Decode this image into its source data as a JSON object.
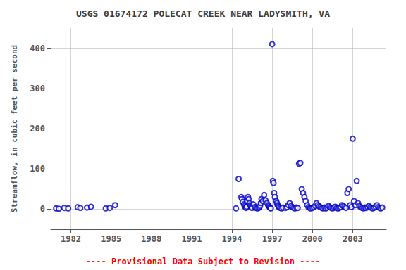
{
  "chart_data": {
    "type": "scatter",
    "title": "USGS 01674172 POLECAT CREEK NEAR LADYSMITH, VA",
    "ylabel": "Streamflow, in cubic feet per second",
    "annotations": [
      {
        "text": "---- Provisional Data Subject to Revision ----",
        "color": "#FF0000"
      }
    ],
    "xlim": [
      1980.5,
      2005.5
    ],
    "ylim": [
      -50,
      450
    ],
    "xticks": [
      1982,
      1985,
      1988,
      1991,
      1994,
      1997,
      2000,
      2003
    ],
    "yticks": [
      0,
      100,
      200,
      300,
      400
    ],
    "grid": true,
    "color": "#0000CC",
    "marker": "circle",
    "x": [
      1980.9,
      1981.1,
      1981.5,
      1981.8,
      1982.5,
      1982.7,
      1983.2,
      1983.5,
      1984.6,
      1984.9,
      1985.3,
      1994.3,
      1994.5,
      1994.7,
      1994.75,
      1994.8,
      1994.9,
      1994.95,
      1995.0,
      1995.05,
      1995.1,
      1995.15,
      1995.2,
      1995.25,
      1995.3,
      1995.35,
      1995.4,
      1995.45,
      1995.5,
      1995.6,
      1995.7,
      1995.8,
      1995.9,
      1996.0,
      1996.05,
      1996.1,
      1996.15,
      1996.2,
      1996.3,
      1996.4,
      1996.5,
      1996.6,
      1996.7,
      1996.75,
      1996.8,
      1996.85,
      1996.9,
      1997.0,
      1997.05,
      1997.1,
      1997.15,
      1997.2,
      1997.3,
      1997.35,
      1997.4,
      1997.45,
      1997.5,
      1997.6,
      1997.7,
      1997.8,
      1998.0,
      1998.1,
      1998.2,
      1998.3,
      1998.4,
      1998.5,
      1998.6,
      1998.7,
      1998.8,
      1998.9,
      1999.0,
      1999.1,
      1999.2,
      1999.3,
      1999.4,
      1999.5,
      1999.6,
      1999.7,
      1999.8,
      1999.85,
      2000.0,
      2000.1,
      2000.2,
      2000.3,
      2000.4,
      2000.5,
      2000.6,
      2000.7,
      2000.8,
      2000.9,
      2001.0,
      2001.1,
      2001.2,
      2001.3,
      2001.4,
      2001.5,
      2001.6,
      2001.7,
      2001.8,
      2001.9,
      2002.0,
      2002.1,
      2002.2,
      2002.3,
      2002.4,
      2002.5,
      2002.6,
      2002.7,
      2002.8,
      2002.9,
      2003.0,
      2003.1,
      2003.2,
      2003.3,
      2003.4,
      2003.5,
      2003.6,
      2003.7,
      2003.8,
      2003.9,
      2004.0,
      2004.1,
      2004.2,
      2004.3,
      2004.4,
      2004.5,
      2004.6,
      2004.7,
      2004.8,
      2004.9,
      2005.0,
      2005.1,
      2005.2
    ],
    "values": [
      2,
      1,
      3,
      2,
      5,
      3,
      4,
      6,
      2,
      3,
      10,
      2,
      75,
      30,
      25,
      18,
      12,
      8,
      5,
      3,
      6,
      20,
      30,
      25,
      15,
      10,
      8,
      5,
      3,
      12,
      5,
      3,
      2,
      3,
      5,
      8,
      15,
      25,
      20,
      35,
      22,
      15,
      10,
      8,
      5,
      3,
      2,
      410,
      70,
      65,
      40,
      30,
      20,
      15,
      10,
      8,
      5,
      3,
      2,
      4,
      3,
      5,
      10,
      15,
      8,
      5,
      3,
      2,
      4,
      3,
      113,
      115,
      50,
      40,
      30,
      20,
      10,
      5,
      3,
      2,
      3,
      5,
      8,
      15,
      10,
      7,
      5,
      3,
      2,
      4,
      2,
      4,
      8,
      5,
      3,
      2,
      4,
      6,
      3,
      2,
      3,
      5,
      10,
      8,
      5,
      3,
      40,
      50,
      10,
      5,
      175,
      20,
      10,
      70,
      15,
      8,
      5,
      3,
      2,
      4,
      3,
      5,
      8,
      5,
      3,
      2,
      4,
      6,
      10,
      5,
      3,
      2,
      4
    ]
  }
}
